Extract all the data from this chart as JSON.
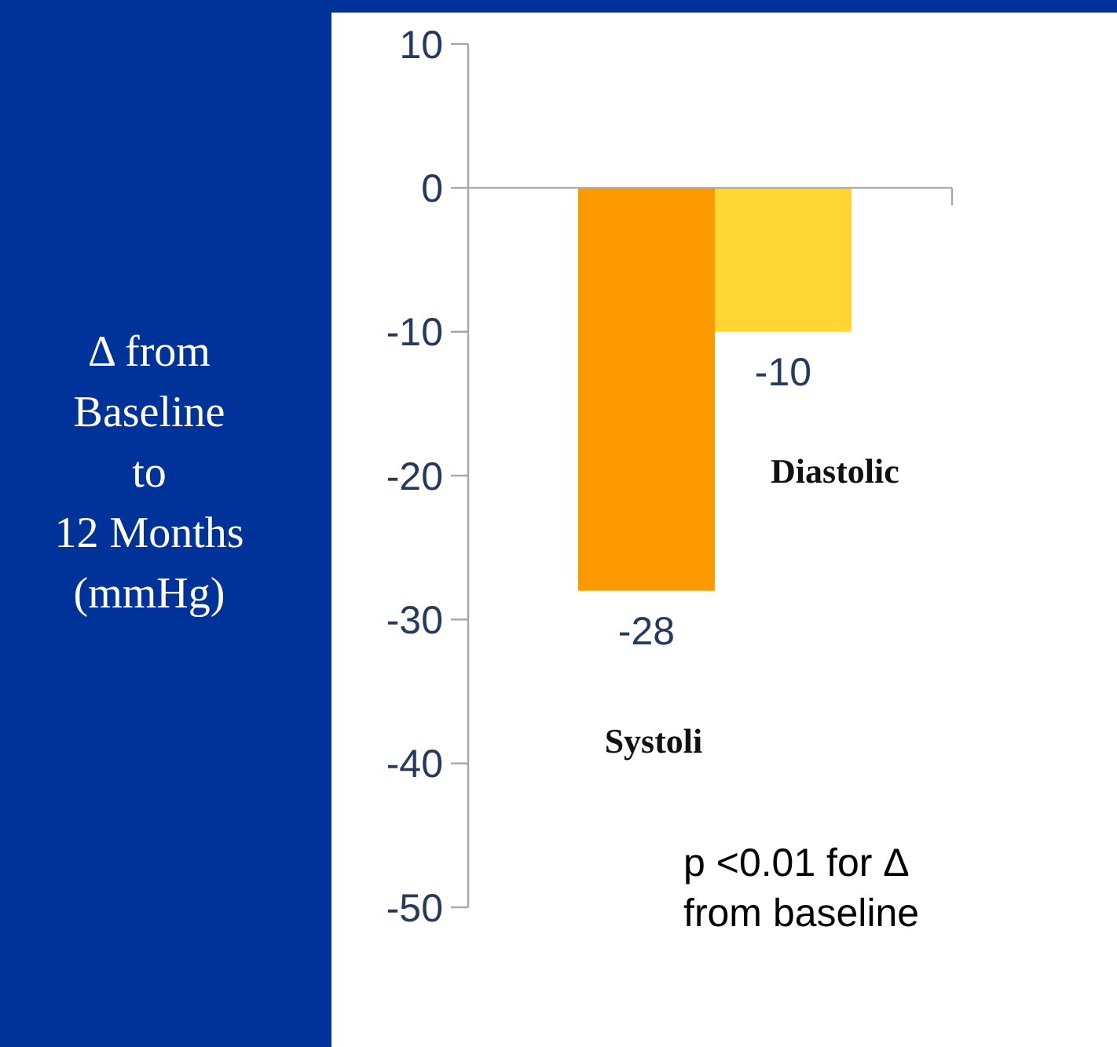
{
  "chart_data": {
    "type": "bar",
    "ylabel": "Δ from\nBaseline\nto\n12 Months\n(mmHg)",
    "categories": [
      "Systoli",
      "Diastolic"
    ],
    "values": [
      -28,
      -10
    ],
    "colors": [
      "#ff9900",
      "#ffd633"
    ],
    "ylim": [
      -50,
      10
    ],
    "yticks": [
      -50,
      -40,
      -30,
      -20,
      -10,
      0,
      10
    ],
    "data_labels": true,
    "annotations": [
      "p <0.01 for Δ\nfrom baseline"
    ]
  }
}
